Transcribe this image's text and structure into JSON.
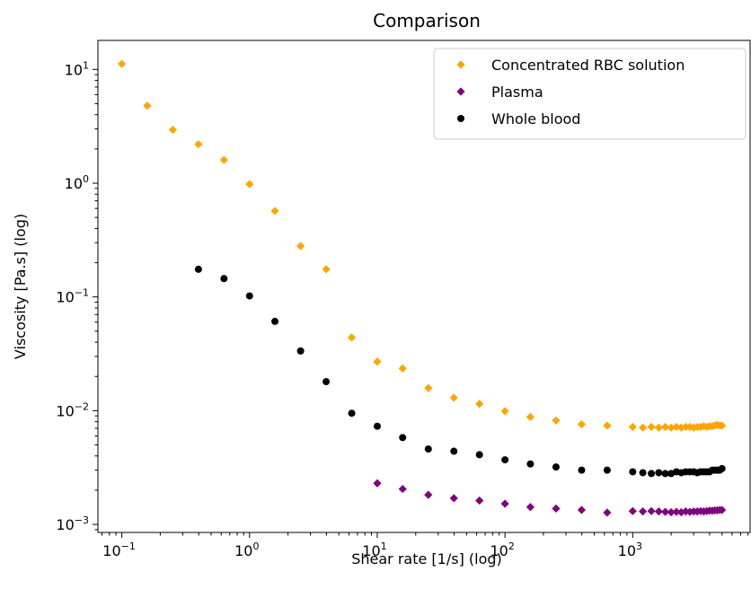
{
  "chart_data": {
    "type": "scatter",
    "title": "Comparison",
    "xlabel": "Shear rate [1/s] (log)",
    "ylabel": "Viscosity [Pa.s] (log)",
    "xscale": "log",
    "yscale": "log",
    "xlim": [
      0.065,
      8300
    ],
    "ylim": [
      0.00085,
      18
    ],
    "grid": false,
    "legend_position": "top-right",
    "xticks": [
      {
        "value": 0.1,
        "base": "10",
        "exp": "−1"
      },
      {
        "value": 1,
        "base": "10",
        "exp": "0"
      },
      {
        "value": 10,
        "base": "10",
        "exp": "1"
      },
      {
        "value": 100,
        "base": "10",
        "exp": "2"
      },
      {
        "value": 1000,
        "base": "10",
        "exp": "3"
      }
    ],
    "yticks": [
      {
        "value": 0.001,
        "base": "10",
        "exp": "−3"
      },
      {
        "value": 0.01,
        "base": "10",
        "exp": "−2"
      },
      {
        "value": 0.1,
        "base": "10",
        "exp": "−1"
      },
      {
        "value": 1,
        "base": "10",
        "exp": "0"
      },
      {
        "value": 10,
        "base": "10",
        "exp": "1"
      }
    ],
    "series": [
      {
        "name": "Concentrated RBC solution",
        "color": "#FFA500",
        "marker": "diamond",
        "x": [
          0.1,
          0.158,
          0.251,
          0.398,
          0.631,
          1,
          1.58,
          2.51,
          3.98,
          6.31,
          10,
          15.8,
          25.1,
          39.8,
          63.1,
          100,
          158,
          251,
          398,
          631,
          1000,
          1200,
          1400,
          1600,
          1800,
          2000,
          2200,
          2400,
          2600,
          2800,
          3000,
          3200,
          3400,
          3600,
          3800,
          4000,
          4200,
          4400,
          4600,
          4800,
          5000
        ],
        "y": [
          11.2,
          4.8,
          2.95,
          2.2,
          1.6,
          0.98,
          0.57,
          0.28,
          0.175,
          0.044,
          0.027,
          0.0235,
          0.0158,
          0.013,
          0.0115,
          0.0099,
          0.0088,
          0.0082,
          0.0076,
          0.0074,
          0.0072,
          0.0071,
          0.0072,
          0.0071,
          0.0072,
          0.0071,
          0.0072,
          0.0071,
          0.0072,
          0.0072,
          0.0071,
          0.0072,
          0.0072,
          0.0073,
          0.0072,
          0.0073,
          0.0073,
          0.0074,
          0.0075,
          0.0074,
          0.0074
        ]
      },
      {
        "name": "Plasma",
        "color": "#800080",
        "marker": "diamond",
        "x": [
          10,
          15.8,
          25.1,
          39.8,
          63.1,
          100,
          158,
          251,
          398,
          631,
          1000,
          1200,
          1400,
          1600,
          1800,
          2000,
          2200,
          2400,
          2600,
          2800,
          3000,
          3200,
          3400,
          3600,
          3800,
          4000,
          4200,
          4400,
          4600,
          4800,
          5000
        ],
        "y": [
          0.0023,
          0.00205,
          0.00182,
          0.0017,
          0.00162,
          0.00152,
          0.00142,
          0.00138,
          0.00134,
          0.00127,
          0.00131,
          0.0013,
          0.00131,
          0.0013,
          0.00129,
          0.00128,
          0.00129,
          0.00128,
          0.0013,
          0.00129,
          0.0013,
          0.0013,
          0.00131,
          0.0013,
          0.00131,
          0.00132,
          0.00132,
          0.00133,
          0.00133,
          0.00134,
          0.00134
        ]
      },
      {
        "name": "Whole blood",
        "color": "#000000",
        "marker": "circle",
        "x": [
          0.398,
          0.631,
          1,
          1.58,
          2.51,
          3.98,
          6.31,
          10,
          15.8,
          25.1,
          39.8,
          63.1,
          100,
          158,
          251,
          398,
          631,
          1000,
          1200,
          1400,
          1600,
          1800,
          2000,
          2200,
          2400,
          2600,
          2800,
          3000,
          3200,
          3400,
          3600,
          3800,
          4000,
          4200,
          4400,
          4600,
          4800,
          5000
        ],
        "y": [
          0.175,
          0.145,
          0.102,
          0.061,
          0.0335,
          0.018,
          0.0095,
          0.0073,
          0.0058,
          0.0046,
          0.0044,
          0.0041,
          0.0037,
          0.0034,
          0.0032,
          0.003,
          0.003,
          0.0029,
          0.00285,
          0.0028,
          0.00285,
          0.0028,
          0.0028,
          0.0029,
          0.00285,
          0.0029,
          0.0029,
          0.0029,
          0.00285,
          0.0029,
          0.0029,
          0.0029,
          0.0029,
          0.003,
          0.003,
          0.003,
          0.003,
          0.0031
        ]
      }
    ]
  }
}
